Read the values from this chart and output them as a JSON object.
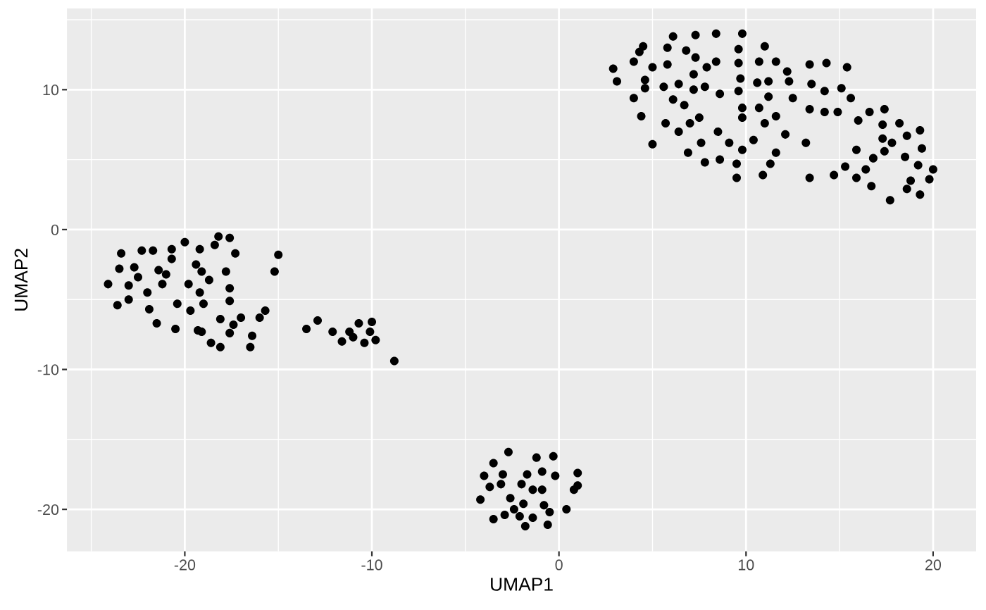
{
  "chart_data": {
    "type": "scatter",
    "xlabel": "UMAP1",
    "ylabel": "UMAP2",
    "color": "#000000",
    "marker": "circle",
    "grid": true,
    "xlim": [
      -26.3,
      22.3
    ],
    "ylim": [
      -23.0,
      15.8
    ],
    "xticks": [
      -20,
      -10,
      0,
      10,
      20
    ],
    "yticks": [
      -20,
      -10,
      0,
      10
    ],
    "x": [
      6.1,
      7.3,
      8.4,
      9.8,
      4.5,
      4.3,
      5.8,
      6.8,
      9.6,
      11.0,
      4.0,
      2.9,
      5.0,
      5.8,
      7.3,
      8.4,
      9.6,
      10.7,
      11.6,
      7.9,
      7.2,
      3.1,
      4.6,
      4.6,
      5.6,
      6.4,
      7.2,
      7.8,
      9.7,
      10.6,
      11.2,
      8.6,
      9.6,
      4.0,
      6.1,
      6.7,
      9.8,
      10.7,
      11.2,
      4.4,
      5.7,
      7.0,
      7.5,
      9.8,
      11.6,
      11.0,
      6.4,
      8.5,
      5.0,
      7.6,
      9.1,
      10.4,
      9.8,
      11.6,
      6.9,
      7.8,
      8.6,
      9.5,
      11.3,
      9.5,
      10.9,
      12.2,
      13.4,
      14.3,
      15.4,
      12.3,
      13.5,
      14.2,
      15.1,
      12.5,
      15.6,
      13.4,
      14.2,
      14.9,
      16.0,
      16.6,
      17.4,
      12.1,
      13.2,
      17.3,
      18.2,
      19.3,
      18.6,
      17.3,
      17.8,
      19.4,
      15.9,
      17.4,
      18.5,
      16.8,
      15.3,
      16.4,
      19.2,
      20.0,
      13.4,
      14.7,
      15.9,
      18.8,
      19.8,
      16.7,
      18.6,
      19.3,
      17.7,
      -18.2,
      -17.6,
      -20.0,
      -18.4,
      -23.4,
      -22.3,
      -21.7,
      -20.7,
      -19.2,
      -17.3,
      -15.0,
      -20.7,
      -23.5,
      -22.7,
      -21.4,
      -21.0,
      -19.4,
      -19.1,
      -17.8,
      -15.2,
      -22.5,
      -18.7,
      -24.1,
      -23.0,
      -21.2,
      -19.8,
      -17.6,
      -22.0,
      -19.2,
      -23.6,
      -23.0,
      -20.4,
      -19.0,
      -17.6,
      -21.9,
      -19.7,
      -15.7,
      -18.1,
      -17.0,
      -16.0,
      -17.4,
      -21.5,
      -20.5,
      -19.3,
      -19.1,
      -17.6,
      -16.4,
      -18.6,
      -18.1,
      -16.5,
      -13.5,
      -12.9,
      -12.1,
      -11.6,
      -11.2,
      -11.0,
      -10.7,
      -10.4,
      -10.1,
      -10.0,
      -9.8,
      -8.8,
      -2.7,
      -1.2,
      -0.3,
      -3.5,
      -4.0,
      -3.0,
      -1.7,
      -0.9,
      -0.2,
      1.0,
      -3.7,
      -3.1,
      -2.0,
      -1.4,
      -0.9,
      1.0,
      0.8,
      -4.2,
      -2.6,
      -1.9,
      -0.8,
      -2.4,
      -0.5,
      0.4,
      -3.5,
      -2.9,
      -2.1,
      -1.4,
      -1.8,
      -0.6
    ],
    "values": [
      13.8,
      13.9,
      14.0,
      14.0,
      13.1,
      12.7,
      13.0,
      12.8,
      12.9,
      13.1,
      12.0,
      11.5,
      11.6,
      11.8,
      12.3,
      12.0,
      11.9,
      12.0,
      12.0,
      11.6,
      11.1,
      10.6,
      10.7,
      10.1,
      10.2,
      10.4,
      10.0,
      10.2,
      10.8,
      10.5,
      10.6,
      9.7,
      9.9,
      9.4,
      9.3,
      8.9,
      8.7,
      8.7,
      9.5,
      8.1,
      7.6,
      7.6,
      8.0,
      8.0,
      8.1,
      7.6,
      7.0,
      7.0,
      6.1,
      6.2,
      6.2,
      6.4,
      5.7,
      5.5,
      5.5,
      4.8,
      5.0,
      4.7,
      4.7,
      3.7,
      3.9,
      11.3,
      11.8,
      11.9,
      11.6,
      10.6,
      10.4,
      9.9,
      10.1,
      9.4,
      9.4,
      8.6,
      8.4,
      8.4,
      7.8,
      8.4,
      8.6,
      6.8,
      6.2,
      7.5,
      7.6,
      7.1,
      6.7,
      6.5,
      6.2,
      5.8,
      5.7,
      5.6,
      5.2,
      5.1,
      4.5,
      4.3,
      4.6,
      4.3,
      3.7,
      3.9,
      3.7,
      3.5,
      3.6,
      3.1,
      2.9,
      2.5,
      2.1,
      -0.5,
      -0.6,
      -0.9,
      -1.1,
      -1.7,
      -1.5,
      -1.5,
      -1.4,
      -1.4,
      -1.7,
      -1.8,
      -2.1,
      -2.8,
      -2.7,
      -2.9,
      -3.2,
      -2.5,
      -3.0,
      -3.0,
      -3.0,
      -3.4,
      -3.6,
      -3.9,
      -4.0,
      -3.9,
      -3.9,
      -4.2,
      -4.5,
      -4.5,
      -5.4,
      -5.0,
      -5.3,
      -5.3,
      -5.1,
      -5.7,
      -5.8,
      -5.8,
      -6.4,
      -6.3,
      -6.3,
      -6.8,
      -6.7,
      -7.1,
      -7.2,
      -7.3,
      -7.4,
      -7.6,
      -8.1,
      -8.4,
      -8.4,
      -7.1,
      -6.5,
      -7.3,
      -8.0,
      -7.3,
      -7.7,
      -6.7,
      -8.1,
      -7.3,
      -6.6,
      -7.9,
      -9.4,
      -15.9,
      -16.3,
      -16.2,
      -16.7,
      -17.6,
      -17.5,
      -17.5,
      -17.3,
      -17.6,
      -17.4,
      -18.4,
      -18.2,
      -18.2,
      -18.6,
      -18.6,
      -18.3,
      -18.6,
      -19.3,
      -19.2,
      -19.6,
      -19.7,
      -20.0,
      -20.2,
      -20.0,
      -20.7,
      -20.4,
      -20.5,
      -20.6,
      -21.2,
      -21.1
    ]
  }
}
